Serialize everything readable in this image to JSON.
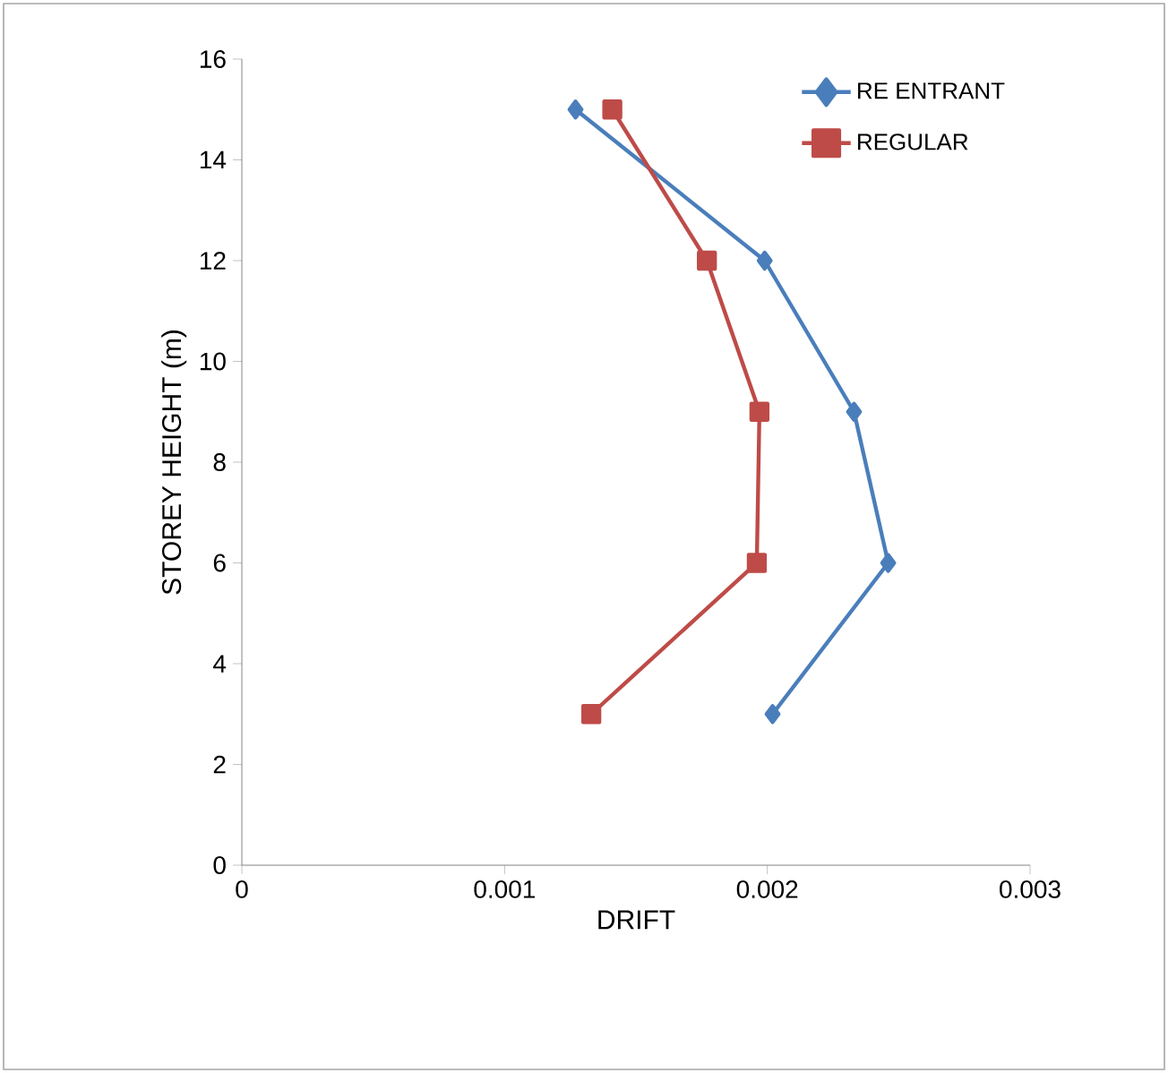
{
  "chart_data": {
    "type": "line",
    "xlabel": "DRIFT",
    "ylabel": "STOREY HEIGHT (m)",
    "xlim": [
      0,
      0.003
    ],
    "xticks": [
      0,
      0.001,
      0.002,
      0.003
    ],
    "ylim": [
      0,
      16
    ],
    "yticks": [
      0,
      2,
      4,
      6,
      8,
      10,
      12,
      14,
      16
    ],
    "legend": "top right",
    "grid": false,
    "line_style": "solid",
    "series": [
      {
        "name": "RE ENTRANT",
        "color": "#4a7ebb",
        "marker": "diamond",
        "x": [
          0.00127,
          0.00199,
          0.00233,
          0.00246,
          0.00202
        ],
        "values": [
          15,
          12,
          9,
          6,
          3
        ]
      },
      {
        "name": "REGULAR",
        "color": "#be4b48",
        "marker": "square",
        "x": [
          0.00141,
          0.00177,
          0.00197,
          0.00196,
          0.00133
        ],
        "values": [
          15,
          12,
          9,
          6,
          3
        ]
      }
    ]
  }
}
